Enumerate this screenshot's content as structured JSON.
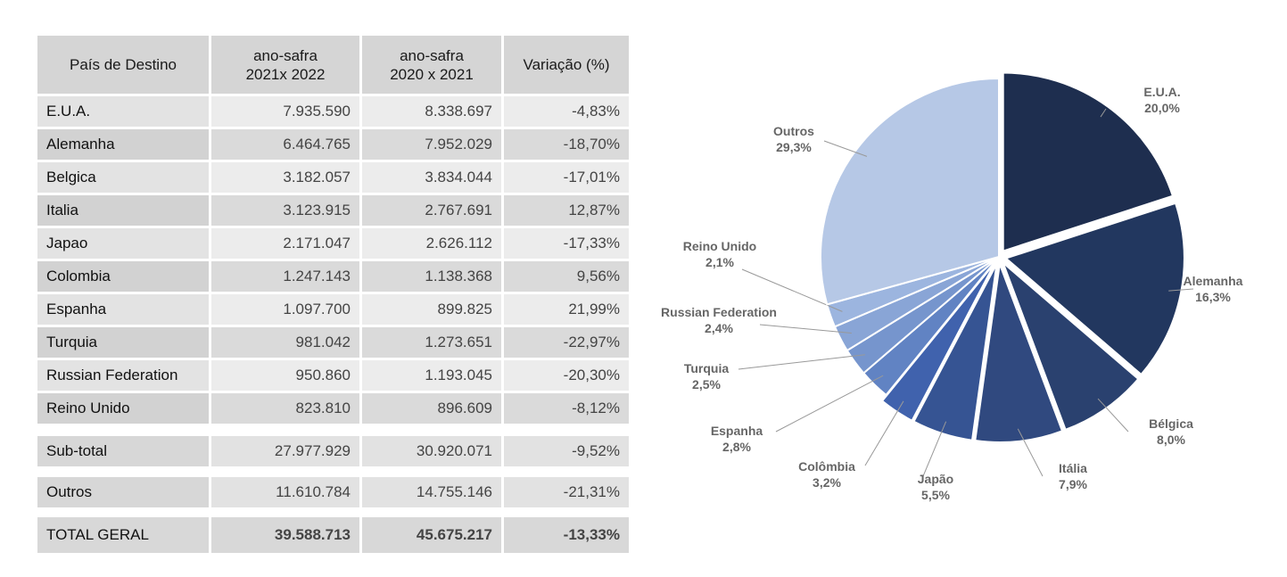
{
  "table": {
    "headers": [
      [
        "País de Destino"
      ],
      [
        "ano-safra",
        "2021x 2022"
      ],
      [
        "ano-safra",
        "2020 x 2021"
      ],
      [
        "Variação (%)"
      ]
    ],
    "rows": [
      [
        "E.U.A.",
        "7.935.590",
        "8.338.697",
        "-4,83%"
      ],
      [
        "Alemanha",
        "6.464.765",
        "7.952.029",
        "-18,70%"
      ],
      [
        "Belgica",
        "3.182.057",
        "3.834.044",
        "-17,01%"
      ],
      [
        "Italia",
        "3.123.915",
        "2.767.691",
        "12,87%"
      ],
      [
        "Japao",
        "2.171.047",
        "2.626.112",
        "-17,33%"
      ],
      [
        "Colombia",
        "1.247.143",
        "1.138.368",
        "9,56%"
      ],
      [
        "Espanha",
        "1.097.700",
        "899.825",
        "21,99%"
      ],
      [
        "Turquia",
        "981.042",
        "1.273.651",
        "-22,97%"
      ],
      [
        "Russian Federation",
        "950.860",
        "1.193.045",
        "-20,30%"
      ],
      [
        "Reino Unido",
        "823.810",
        "896.609",
        "-8,12%"
      ]
    ],
    "subtotal": [
      "Sub-total",
      "27.977.929",
      "30.920.071",
      "-9,52%"
    ],
    "outros": [
      "Outros",
      "11.610.784",
      "14.755.146",
      "-21,31%"
    ],
    "total": [
      "TOTAL GERAL",
      "39.588.713",
      "45.675.217",
      "-13,33%"
    ]
  },
  "chart_data": {
    "type": "pie",
    "title": "",
    "categories": [
      "E.U.A.",
      "Alemanha",
      "Bélgica",
      "Itália",
      "Japão",
      "Colômbia",
      "Espanha",
      "Turquia",
      "Russian Federation",
      "Reino Unido",
      "Outros"
    ],
    "values": [
      20.0,
      16.3,
      8.0,
      7.9,
      5.5,
      3.2,
      2.8,
      2.5,
      2.4,
      2.1,
      29.3
    ],
    "value_labels": [
      "20,0%",
      "16,3%",
      "8,0%",
      "7,9%",
      "5,5%",
      "3,2%",
      "2,8%",
      "2,5%",
      "2,4%",
      "2,1%",
      "29,3%"
    ],
    "colors": [
      "#1e2e4f",
      "#22375f",
      "#2a416f",
      "#30497f",
      "#365493",
      "#4062ad",
      "#6183c3",
      "#7695cd",
      "#89a5d6",
      "#9cb5df",
      "#b6c8e6"
    ],
    "exploded": [
      "E.U.A.",
      "Alemanha",
      "Bélgica",
      "Itália",
      "Japão",
      "Colômbia"
    ],
    "start_angle_deg": 0,
    "direction": "clockwise",
    "label_color": "#666666",
    "leader_color": "#999999"
  }
}
